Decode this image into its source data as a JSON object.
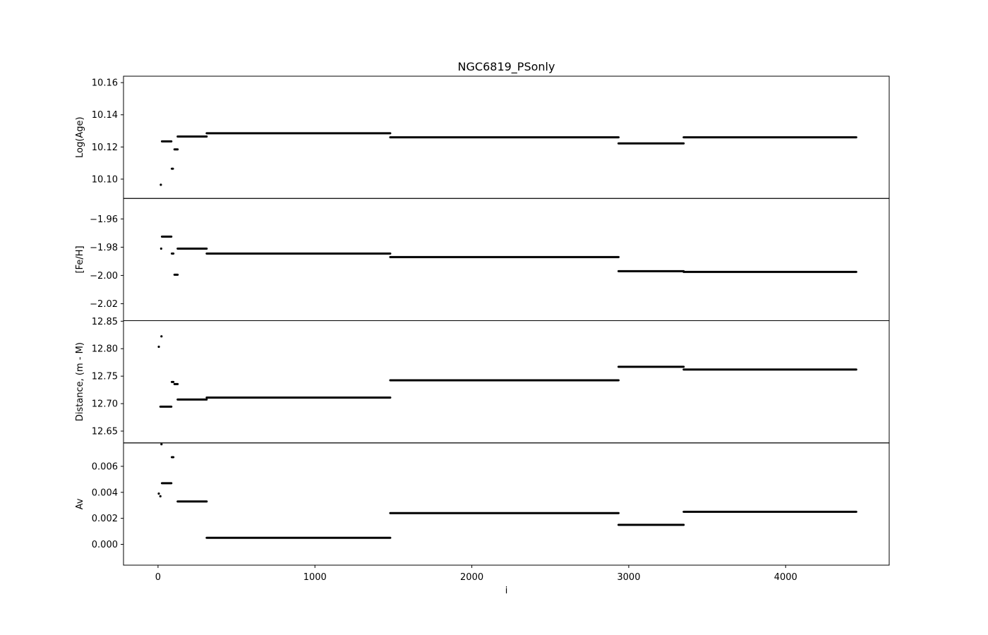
{
  "chart_data": {
    "type": "scatter",
    "title": "NGC6819_PSonly",
    "xlabel": "i",
    "xlim": [
      -220,
      4660
    ],
    "xticks": [
      0,
      1000,
      2000,
      3000,
      4000
    ],
    "xtick_labels": [
      "0",
      "1000",
      "2000",
      "3000",
      "4000"
    ],
    "marker_color": "#000000",
    "grid": false,
    "legend": "none",
    "panels": [
      {
        "name": "log-age",
        "ylabel": "Log(Age)",
        "ylim": [
          10.088,
          10.164
        ],
        "yticks": [
          10.1,
          10.12,
          10.14,
          10.16
        ],
        "ytick_labels": [
          "10.10",
          "10.12",
          "10.14",
          "10.16"
        ],
        "points": [
          [
            18,
            10.0965
          ]
        ],
        "segments": [
          [
            25,
            85,
            10.1235
          ],
          [
            88,
            95,
            10.1065
          ],
          [
            105,
            125,
            10.1185
          ],
          [
            125,
            310,
            10.1265
          ],
          [
            310,
            1480,
            10.1285
          ],
          [
            1480,
            2935,
            10.126
          ],
          [
            2935,
            3350,
            10.1222
          ],
          [
            3350,
            4450,
            10.126
          ]
        ]
      },
      {
        "name": "fe-h",
        "ylabel": "[Fe/H]",
        "ylim": [
          -2.032,
          -1.9455
        ],
        "yticks": [
          -2.02,
          -2.0,
          -1.98,
          -1.96
        ],
        "ytick_labels": [
          "−2.02",
          "−2.00",
          "−1.98",
          "−1.96"
        ],
        "points": [
          [
            20,
            -1.981
          ]
        ],
        "segments": [
          [
            25,
            85,
            -1.9725
          ],
          [
            88,
            98,
            -1.9845
          ],
          [
            105,
            125,
            -1.9995
          ],
          [
            125,
            310,
            -1.981
          ],
          [
            310,
            1480,
            -1.9845
          ],
          [
            1480,
            2935,
            -1.987
          ],
          [
            2935,
            3350,
            -1.997
          ],
          [
            3350,
            4450,
            -1.9975
          ]
        ]
      },
      {
        "name": "distance",
        "ylabel": "Distance, (m - M)",
        "ylim": [
          12.6285,
          12.851
        ],
        "yticks": [
          12.65,
          12.7,
          12.75,
          12.8,
          12.85
        ],
        "ytick_labels": [
          "12.65",
          "12.70",
          "12.75",
          "12.80",
          "12.85"
        ],
        "points": [
          [
            5,
            12.8035
          ],
          [
            22,
            12.8225
          ]
        ],
        "segments": [
          [
            15,
            85,
            12.6945
          ],
          [
            88,
            98,
            12.7395
          ],
          [
            105,
            125,
            12.7355
          ],
          [
            125,
            310,
            12.7075
          ],
          [
            310,
            1480,
            12.711
          ],
          [
            1480,
            2935,
            12.7425
          ],
          [
            2935,
            3350,
            12.767
          ],
          [
            3350,
            4450,
            12.762
          ]
        ]
      },
      {
        "name": "av",
        "ylabel": "Av",
        "ylim": [
          -0.0016,
          0.0078
        ],
        "yticks": [
          0.0,
          0.002,
          0.004,
          0.006
        ],
        "ytick_labels": [
          "0.000",
          "0.002",
          "0.004",
          "0.006"
        ],
        "points": [
          [
            22,
            0.0077
          ],
          [
            5,
            0.0039
          ],
          [
            15,
            0.0037
          ]
        ],
        "segments": [
          [
            25,
            85,
            0.0047
          ],
          [
            88,
            98,
            0.0067
          ],
          [
            125,
            310,
            0.0033
          ],
          [
            310,
            1480,
            0.0005
          ],
          [
            1480,
            2935,
            0.0024
          ],
          [
            2935,
            3350,
            0.0015
          ],
          [
            3350,
            4450,
            0.0025
          ]
        ]
      }
    ]
  }
}
